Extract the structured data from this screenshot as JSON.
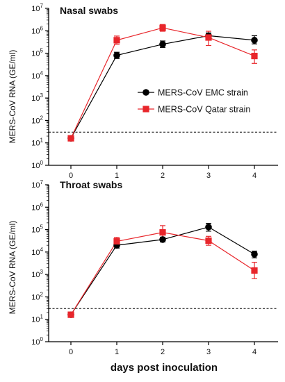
{
  "chart_data": [
    {
      "type": "line",
      "title": "Nasal swabs",
      "ylabel": "MERS-CoV RNA (GE/ml)",
      "xlabel": "days post inoculation",
      "x": [
        0,
        1,
        2,
        3,
        4
      ],
      "yscale": "log",
      "ylim": [
        1,
        10000000
      ],
      "yticks": [
        {
          "base": "10",
          "exp": "0"
        },
        {
          "base": "10",
          "exp": "1"
        },
        {
          "base": "10",
          "exp": "2"
        },
        {
          "base": "10",
          "exp": "3"
        },
        {
          "base": "10",
          "exp": "4"
        },
        {
          "base": "10",
          "exp": "5"
        },
        {
          "base": "10",
          "exp": "6"
        },
        {
          "base": "10",
          "exp": "7"
        }
      ],
      "xticks": [
        "0",
        "1",
        "2",
        "3",
        "4"
      ],
      "threshold": 30,
      "legend_position": "right-middle",
      "series": [
        {
          "name": "MERS-CoV EMC strain",
          "color": "#000000",
          "marker": "circle",
          "x": [
            0,
            1,
            2,
            3,
            4
          ],
          "values": [
            16,
            80000,
            250000,
            600000,
            380000
          ],
          "err_low": [
            16,
            58000,
            180000,
            430000,
            260000
          ],
          "err_high": [
            16,
            110000,
            350000,
            800000,
            600000
          ]
        },
        {
          "name": "MERS-CoV Qatar strain",
          "color": "#e8262b",
          "marker": "square",
          "x": [
            0,
            1,
            2,
            3,
            4
          ],
          "values": [
            16,
            380000,
            1350000,
            500000,
            75000
          ],
          "err_low": [
            16,
            250000,
            950000,
            220000,
            35000
          ],
          "err_high": [
            16,
            580000,
            1900000,
            950000,
            140000
          ]
        }
      ]
    },
    {
      "type": "line",
      "title": "Throat swabs",
      "ylabel": "MERS-CoV RNA (GE/ml)",
      "xlabel": "days post inoculation",
      "x": [
        0,
        1,
        2,
        3,
        4
      ],
      "yscale": "log",
      "ylim": [
        1,
        10000000
      ],
      "yticks": [
        {
          "base": "10",
          "exp": "0"
        },
        {
          "base": "10",
          "exp": "1"
        },
        {
          "base": "10",
          "exp": "2"
        },
        {
          "base": "10",
          "exp": "3"
        },
        {
          "base": "10",
          "exp": "4"
        },
        {
          "base": "10",
          "exp": "5"
        },
        {
          "base": "10",
          "exp": "6"
        },
        {
          "base": "10",
          "exp": "7"
        }
      ],
      "xticks": [
        "0",
        "1",
        "2",
        "3",
        "4"
      ],
      "threshold": 30,
      "series": [
        {
          "name": "MERS-CoV EMC strain",
          "color": "#000000",
          "marker": "circle",
          "x": [
            0,
            1,
            2,
            3,
            4
          ],
          "values": [
            16,
            20000,
            36000,
            130000,
            8000
          ],
          "err_low": [
            16,
            15000,
            28000,
            85000,
            5500
          ],
          "err_high": [
            16,
            27000,
            46000,
            190000,
            11000
          ]
        },
        {
          "name": "MERS-CoV Qatar strain",
          "color": "#e8262b",
          "marker": "square",
          "x": [
            0,
            1,
            2,
            3,
            4
          ],
          "values": [
            16,
            30000,
            75000,
            32000,
            1500
          ],
          "err_low": [
            16,
            20000,
            40000,
            20000,
            650
          ],
          "err_high": [
            16,
            45000,
            150000,
            50000,
            3500
          ]
        }
      ]
    }
  ]
}
